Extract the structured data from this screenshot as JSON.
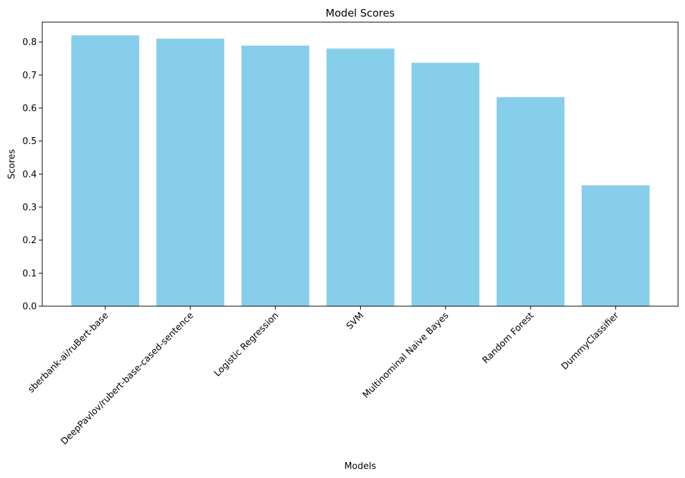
{
  "chart_data": {
    "type": "bar",
    "title": "Model Scores",
    "xlabel": "Models",
    "ylabel": "Scores",
    "categories": [
      "sberbank-ai/ruBert-base",
      "DeepPavlov/rubert-base-cased-sentence",
      "Logistic Regression",
      "SVM",
      "Multinominal Naive Bayes",
      "Random Forest",
      "DummyClassifier"
    ],
    "values": [
      0.82,
      0.81,
      0.789,
      0.78,
      0.737,
      0.633,
      0.366
    ],
    "ylim": [
      0,
      0.86
    ],
    "yticks": [
      0.0,
      0.1,
      0.2,
      0.3,
      0.4,
      0.5,
      0.6,
      0.7,
      0.8
    ],
    "ytick_labels": [
      "0.0",
      "0.1",
      "0.2",
      "0.3",
      "0.4",
      "0.5",
      "0.6",
      "0.7",
      "0.8"
    ],
    "grid": false,
    "bar_color": "#87CEEB"
  }
}
